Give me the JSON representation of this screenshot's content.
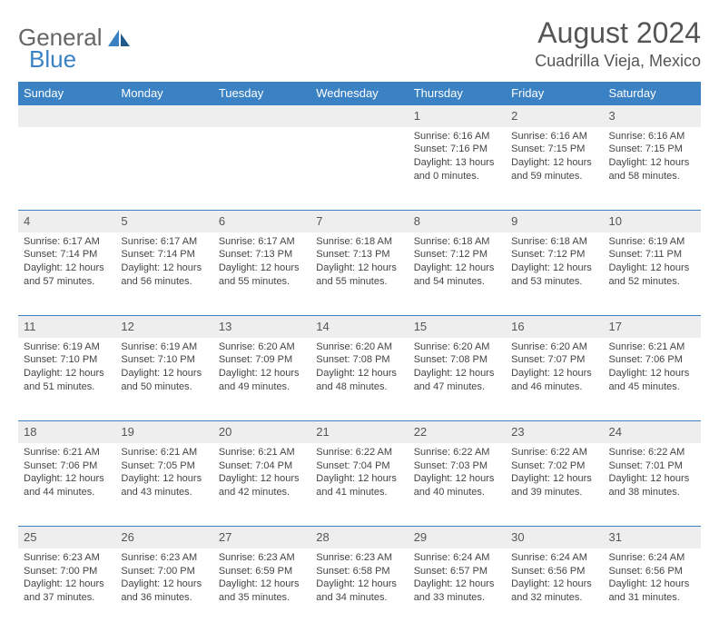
{
  "logo": {
    "text_a": "General",
    "text_b": "Blue"
  },
  "header": {
    "month_title": "August 2024",
    "location": "Cuadrilla Vieja, Mexico"
  },
  "colors": {
    "header_bg": "#3b82c4",
    "header_fg": "#ffffff",
    "daynum_bg": "#eeeeee",
    "row_divider": "#3b82c4",
    "text": "#444444"
  },
  "weekdays": [
    "Sunday",
    "Monday",
    "Tuesday",
    "Wednesday",
    "Thursday",
    "Friday",
    "Saturday"
  ],
  "weeks": [
    {
      "nums": [
        "",
        "",
        "",
        "",
        "1",
        "2",
        "3"
      ],
      "cells": [
        "",
        "",
        "",
        "",
        "Sunrise: 6:16 AM\nSunset: 7:16 PM\nDaylight: 13 hours and 0 minutes.",
        "Sunrise: 6:16 AM\nSunset: 7:15 PM\nDaylight: 12 hours and 59 minutes.",
        "Sunrise: 6:16 AM\nSunset: 7:15 PM\nDaylight: 12 hours and 58 minutes."
      ]
    },
    {
      "nums": [
        "4",
        "5",
        "6",
        "7",
        "8",
        "9",
        "10"
      ],
      "cells": [
        "Sunrise: 6:17 AM\nSunset: 7:14 PM\nDaylight: 12 hours and 57 minutes.",
        "Sunrise: 6:17 AM\nSunset: 7:14 PM\nDaylight: 12 hours and 56 minutes.",
        "Sunrise: 6:17 AM\nSunset: 7:13 PM\nDaylight: 12 hours and 55 minutes.",
        "Sunrise: 6:18 AM\nSunset: 7:13 PM\nDaylight: 12 hours and 55 minutes.",
        "Sunrise: 6:18 AM\nSunset: 7:12 PM\nDaylight: 12 hours and 54 minutes.",
        "Sunrise: 6:18 AM\nSunset: 7:12 PM\nDaylight: 12 hours and 53 minutes.",
        "Sunrise: 6:19 AM\nSunset: 7:11 PM\nDaylight: 12 hours and 52 minutes."
      ]
    },
    {
      "nums": [
        "11",
        "12",
        "13",
        "14",
        "15",
        "16",
        "17"
      ],
      "cells": [
        "Sunrise: 6:19 AM\nSunset: 7:10 PM\nDaylight: 12 hours and 51 minutes.",
        "Sunrise: 6:19 AM\nSunset: 7:10 PM\nDaylight: 12 hours and 50 minutes.",
        "Sunrise: 6:20 AM\nSunset: 7:09 PM\nDaylight: 12 hours and 49 minutes.",
        "Sunrise: 6:20 AM\nSunset: 7:08 PM\nDaylight: 12 hours and 48 minutes.",
        "Sunrise: 6:20 AM\nSunset: 7:08 PM\nDaylight: 12 hours and 47 minutes.",
        "Sunrise: 6:20 AM\nSunset: 7:07 PM\nDaylight: 12 hours and 46 minutes.",
        "Sunrise: 6:21 AM\nSunset: 7:06 PM\nDaylight: 12 hours and 45 minutes."
      ]
    },
    {
      "nums": [
        "18",
        "19",
        "20",
        "21",
        "22",
        "23",
        "24"
      ],
      "cells": [
        "Sunrise: 6:21 AM\nSunset: 7:06 PM\nDaylight: 12 hours and 44 minutes.",
        "Sunrise: 6:21 AM\nSunset: 7:05 PM\nDaylight: 12 hours and 43 minutes.",
        "Sunrise: 6:21 AM\nSunset: 7:04 PM\nDaylight: 12 hours and 42 minutes.",
        "Sunrise: 6:22 AM\nSunset: 7:04 PM\nDaylight: 12 hours and 41 minutes.",
        "Sunrise: 6:22 AM\nSunset: 7:03 PM\nDaylight: 12 hours and 40 minutes.",
        "Sunrise: 6:22 AM\nSunset: 7:02 PM\nDaylight: 12 hours and 39 minutes.",
        "Sunrise: 6:22 AM\nSunset: 7:01 PM\nDaylight: 12 hours and 38 minutes."
      ]
    },
    {
      "nums": [
        "25",
        "26",
        "27",
        "28",
        "29",
        "30",
        "31"
      ],
      "cells": [
        "Sunrise: 6:23 AM\nSunset: 7:00 PM\nDaylight: 12 hours and 37 minutes.",
        "Sunrise: 6:23 AM\nSunset: 7:00 PM\nDaylight: 12 hours and 36 minutes.",
        "Sunrise: 6:23 AM\nSunset: 6:59 PM\nDaylight: 12 hours and 35 minutes.",
        "Sunrise: 6:23 AM\nSunset: 6:58 PM\nDaylight: 12 hours and 34 minutes.",
        "Sunrise: 6:24 AM\nSunset: 6:57 PM\nDaylight: 12 hours and 33 minutes.",
        "Sunrise: 6:24 AM\nSunset: 6:56 PM\nDaylight: 12 hours and 32 minutes.",
        "Sunrise: 6:24 AM\nSunset: 6:56 PM\nDaylight: 12 hours and 31 minutes."
      ]
    }
  ]
}
